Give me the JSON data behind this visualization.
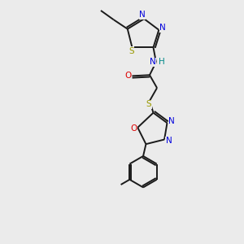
{
  "bg_color": "#ebebeb",
  "atom_colors": {
    "C": "#000000",
    "N": "#0000dd",
    "O": "#dd0000",
    "S": "#999900",
    "H": "#008888"
  },
  "bond_color": "#1a1a1a",
  "figsize": [
    3.0,
    3.0
  ],
  "dpi": 100,
  "lw": 1.4,
  "fs": 7.5
}
